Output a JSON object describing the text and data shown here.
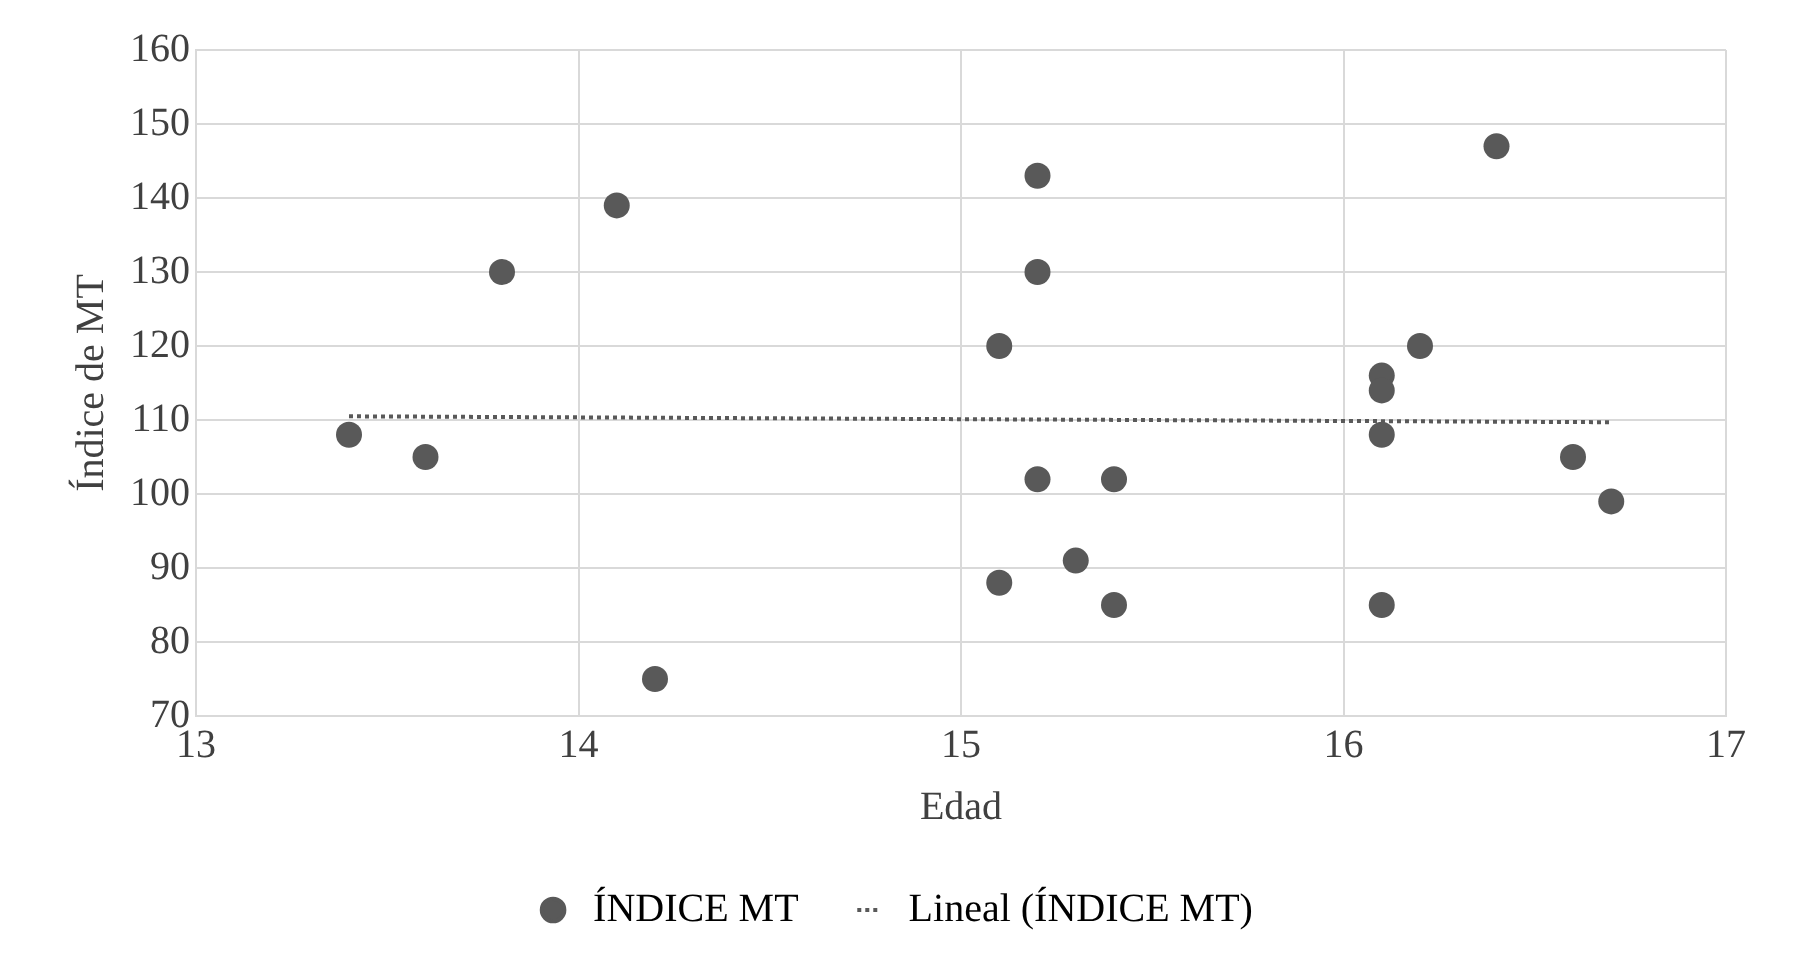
{
  "chart_data": {
    "type": "scatter",
    "xlabel": "Edad",
    "ylabel": "Índice de MT",
    "xlim": [
      13,
      17
    ],
    "xticks": [
      13,
      14,
      15,
      16,
      17
    ],
    "ylim": [
      70,
      160
    ],
    "yticks": [
      70,
      80,
      90,
      100,
      110,
      120,
      130,
      140,
      150,
      160
    ],
    "grid": true,
    "legend": "bottom",
    "marker": "circle",
    "series": [
      {
        "name": "ÍNDICE MT",
        "color": "#595959",
        "x": [
          13.4,
          13.6,
          13.8,
          14.1,
          14.2,
          15.1,
          15.1,
          15.2,
          15.2,
          15.2,
          15.3,
          15.4,
          15.4,
          16.1,
          16.1,
          16.1,
          16.1,
          16.2,
          16.4,
          16.6,
          16.7
        ],
        "values": [
          108,
          105,
          130,
          139,
          75,
          120,
          88,
          143,
          130,
          102,
          91,
          102,
          85,
          116,
          114,
          108,
          85,
          120,
          147,
          105,
          99
        ]
      },
      {
        "name": "Lineal (ÍNDICE MT)",
        "color": "#595959",
        "type": "line",
        "line_style": "dotted",
        "marker": "none",
        "x": [
          13.4,
          16.7
        ],
        "values": [
          110.5,
          109.7
        ]
      }
    ]
  }
}
